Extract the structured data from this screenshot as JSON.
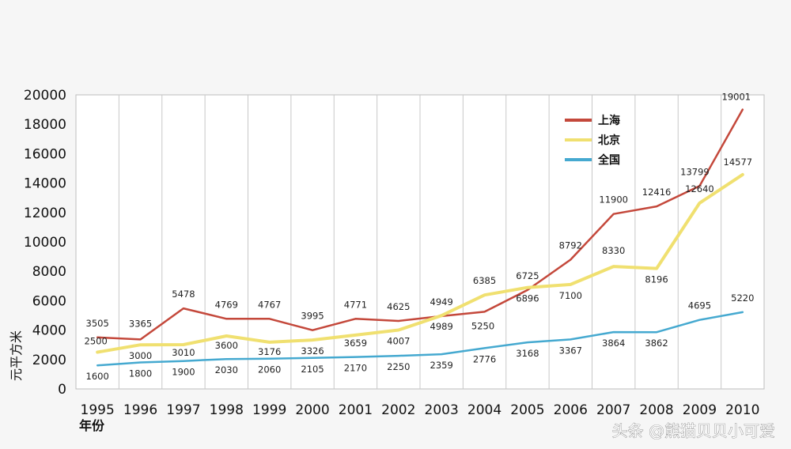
{
  "chart_data": {
    "type": "line",
    "title": "",
    "xlabel": "年份",
    "ylabel": "元平方米",
    "categories": [
      "1995",
      "1996",
      "1997",
      "1998",
      "1999",
      "2000",
      "2001",
      "2002",
      "2003",
      "2004",
      "2005",
      "2006",
      "2007",
      "2008",
      "2009",
      "2010"
    ],
    "ylim": [
      0,
      20000
    ],
    "yticks": [
      0,
      2000,
      4000,
      6000,
      8000,
      10000,
      12000,
      14000,
      16000,
      18000,
      20000
    ],
    "grid": "vertical",
    "legend_position": "top-right",
    "series": [
      {
        "name": "上海",
        "color": "#c4483b",
        "values": [
          3505,
          3365,
          5478,
          4769,
          4767,
          3995,
          4771,
          4625,
          4949,
          5250,
          6725,
          8792,
          11900,
          12416,
          13799,
          19001
        ],
        "labels": [
          "3505",
          "3365",
          "5478",
          "4769",
          "4767",
          "3995",
          "4771",
          "4625",
          "4949",
          "5250",
          "6725",
          "8792",
          "11900",
          "12416",
          "13799",
          "19001"
        ]
      },
      {
        "name": "北京",
        "color": "#f0e070",
        "values": [
          2500,
          3000,
          3010,
          3600,
          3176,
          3326,
          3659,
          4007,
          4989,
          6385,
          6896,
          7100,
          8330,
          8196,
          12640,
          14577
        ],
        "labels": [
          "2500",
          "3000",
          "3010",
          "3600",
          "3176",
          "3326",
          "3659",
          "4007",
          "4989",
          "6385",
          "6896",
          "7100",
          "8330",
          "8196",
          "12640",
          "14577"
        ]
      },
      {
        "name": "全国",
        "color": "#45a9d0",
        "values": [
          1600,
          1800,
          1900,
          2030,
          2060,
          2105,
          2170,
          2250,
          2359,
          2776,
          3168,
          3367,
          3864,
          3862,
          4695,
          5220
        ],
        "labels": [
          "1600",
          "1800",
          "1900",
          "2030",
          "2060",
          "2105",
          "2170",
          "2250",
          "2359",
          "2776",
          "3168",
          "3367",
          "3864",
          "3862",
          "4695",
          "5220"
        ]
      }
    ]
  },
  "watermark": "头条 @熊猫贝贝小可爱"
}
